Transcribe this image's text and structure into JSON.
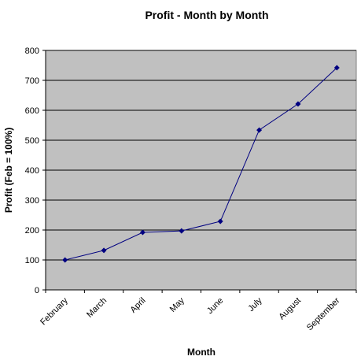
{
  "chart_data": {
    "type": "line",
    "title": "Profit - Month by Month",
    "x_label": "Month",
    "y_label": "Profit (Feb = 100%)",
    "categories": [
      "February",
      "March",
      "April",
      "May",
      "June",
      "July",
      "August",
      "September"
    ],
    "values": [
      100,
      132,
      192,
      197,
      229,
      534,
      621,
      742
    ],
    "color": "#000080",
    "plot_background": "#c0c0c0",
    "ylim": [
      0,
      800
    ],
    "yticks": [
      0,
      100,
      200,
      300,
      400,
      500,
      600,
      700,
      800
    ],
    "grid": true
  }
}
